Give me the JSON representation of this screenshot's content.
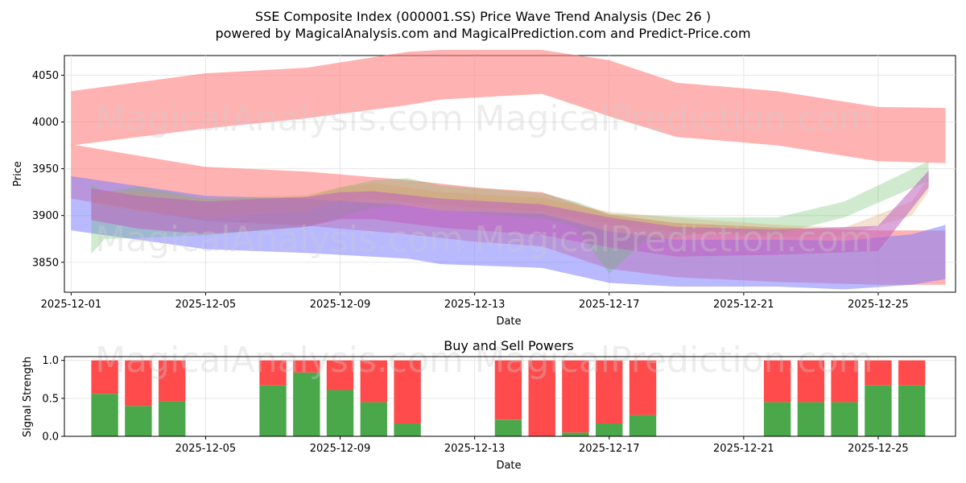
{
  "header": {
    "title_line1": "SSE Composite Index (000001.SS) Price Wave Trend Analysis (Dec 26 )",
    "title_line2": "powered by MagicalAnalysis.com and MagicalPrediction.com and Predict-Price.com"
  },
  "watermarks": {
    "left": "MagicalAnalysis.com",
    "right": "MagicalPrediction.com"
  },
  "colors": {
    "red": "#ff7f7f",
    "blue": "#7f7fff",
    "green": "#5fb85f",
    "purple": "#c060c0",
    "orange": "#d8a060",
    "buy": "#4aa84a",
    "sell": "#ff4b4b"
  },
  "chart_data": [
    {
      "type": "area",
      "title": "",
      "xlabel": "Date",
      "ylabel": "Price",
      "x_tick_labels": [
        "2025-12-01",
        "2025-12-05",
        "2025-12-09",
        "2025-12-13",
        "2025-12-17",
        "2025-12-21",
        "2025-12-25"
      ],
      "y_tick_labels": [
        "3850",
        "3900",
        "3950",
        "4000",
        "4050"
      ],
      "x_ticks_day": [
        1,
        5,
        9,
        13,
        17,
        21,
        25
      ],
      "y_ticks": [
        3850,
        3900,
        3950,
        4000,
        4050
      ],
      "xlim_day": [
        0.8,
        27.3
      ],
      "ylim": [
        3818,
        4071
      ],
      "bands": [
        {
          "name": "upper red band",
          "color": "red",
          "opacity": 0.6,
          "x": [
            1,
            5,
            8,
            11,
            12,
            15,
            17,
            19,
            22,
            25,
            27
          ],
          "upper": [
            4033,
            4052,
            4058,
            4075,
            4077,
            4077,
            4066,
            4042,
            4033,
            4016,
            4015
          ],
          "lower": [
            3975,
            3993,
            4004,
            4018,
            4024,
            4030,
            4006,
            3984,
            3975,
            3958,
            3956
          ]
        },
        {
          "name": "lower red band",
          "color": "red",
          "opacity": 0.6,
          "x": [
            1,
            5,
            8,
            11,
            13,
            15,
            17,
            19,
            22,
            25,
            27
          ],
          "upper": [
            3976,
            3952,
            3947,
            3938,
            3930,
            3925,
            3901,
            3892,
            3887,
            3884,
            3884
          ],
          "lower": [
            3918,
            3894,
            3889,
            3880,
            3872,
            3867,
            3843,
            3834,
            3829,
            3826,
            3826
          ]
        },
        {
          "name": "blue band",
          "color": "blue",
          "opacity": 0.55,
          "x": [
            1,
            5,
            8,
            11,
            12,
            15,
            17,
            19,
            22,
            24,
            26,
            27
          ],
          "upper": [
            3942,
            3921,
            3918,
            3911,
            3905,
            3902,
            3883,
            3874,
            3874,
            3873,
            3880,
            3890
          ],
          "lower": [
            3884,
            3864,
            3860,
            3854,
            3848,
            3844,
            3828,
            3824,
            3824,
            3821,
            3826,
            3832
          ]
        },
        {
          "name": "green band",
          "color": "green",
          "opacity": 0.3,
          "x": [
            1.6,
            2,
            3,
            5,
            8,
            9,
            10,
            11,
            12,
            15,
            16,
            17,
            18,
            20,
            22,
            24,
            26.5
          ],
          "upper": [
            3933,
            3925,
            3931,
            3918,
            3920,
            3930,
            3938,
            3940,
            3932,
            3924,
            3915,
            3902,
            3900,
            3898,
            3898,
            3915,
            3958
          ],
          "lower": [
            3859,
            3875,
            3876,
            3879,
            3888,
            3898,
            3908,
            3912,
            3905,
            3897,
            3888,
            3838,
            3872,
            3882,
            3880,
            3898,
            3937
          ]
        },
        {
          "name": "orange band",
          "color": "orange",
          "opacity": 0.3,
          "x": [
            1.6,
            3,
            5,
            8,
            9,
            10,
            12,
            15,
            17,
            20,
            22,
            24,
            26,
            26.5
          ],
          "upper": [
            3924,
            3927,
            3918,
            3922,
            3930,
            3935,
            3925,
            3919,
            3904,
            3895,
            3890,
            3887,
            3915,
            3940
          ],
          "lower": [
            3912,
            3905,
            3898,
            3905,
            3915,
            3918,
            3911,
            3904,
            3890,
            3879,
            3877,
            3878,
            3900,
            3926
          ]
        },
        {
          "name": "purple band",
          "color": "purple",
          "opacity": 0.55,
          "x": [
            1.6,
            3,
            5,
            8,
            9,
            10,
            12,
            15,
            17,
            19,
            22,
            25,
            26.5
          ],
          "upper": [
            3929,
            3921,
            3915,
            3920,
            3925,
            3926,
            3918,
            3912,
            3898,
            3888,
            3885,
            3889,
            3948
          ],
          "lower": [
            3895,
            3886,
            3880,
            3888,
            3896,
            3896,
            3887,
            3879,
            3866,
            3856,
            3858,
            3862,
            3930
          ]
        }
      ]
    },
    {
      "type": "bar",
      "title": "Buy and Sell Powers",
      "xlabel": "Date",
      "ylabel": "Signal Strength",
      "x_tick_labels": [
        "2025-12-05",
        "2025-12-09",
        "2025-12-13",
        "2025-12-17",
        "2025-12-21",
        "2025-12-25"
      ],
      "x_ticks_day": [
        5,
        9,
        13,
        17,
        21,
        25
      ],
      "y_tick_labels": [
        "0.0",
        "0.5",
        "1.0"
      ],
      "y_ticks": [
        0,
        0.5,
        1
      ],
      "ylim": [
        0,
        1.05
      ],
      "xlim_day": [
        0.8,
        27.3
      ],
      "days": [
        2,
        3,
        4,
        7,
        8,
        9,
        10,
        11,
        14,
        15,
        16,
        17,
        18,
        22,
        23,
        24,
        25,
        26
      ],
      "buy": [
        0.56,
        0.4,
        0.46,
        0.67,
        0.84,
        0.61,
        0.45,
        0.17,
        0.22,
        0.0,
        0.05,
        0.17,
        0.28,
        0.45,
        0.45,
        0.45,
        0.67,
        0.67
      ],
      "sell": [
        0.44,
        0.6,
        0.54,
        0.33,
        0.16,
        0.39,
        0.55,
        0.83,
        0.78,
        1.0,
        0.95,
        0.83,
        0.72,
        0.55,
        0.55,
        0.55,
        0.33,
        0.33
      ]
    }
  ]
}
